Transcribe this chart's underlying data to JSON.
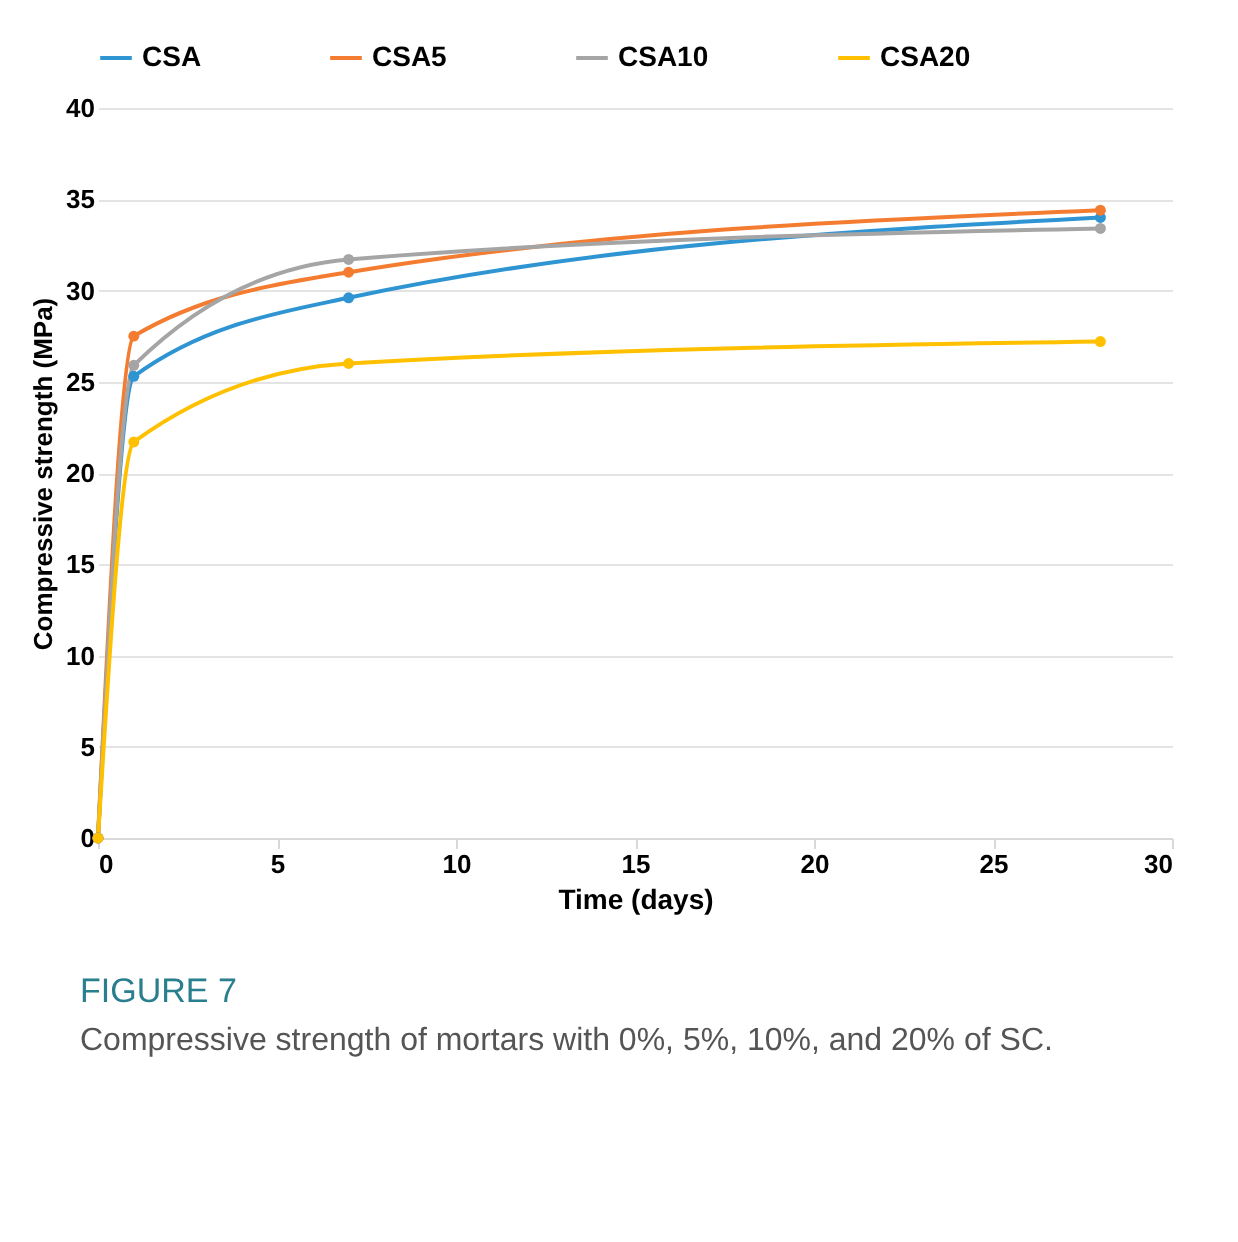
{
  "chart_data": {
    "type": "line",
    "xlabel": "Time (days)",
    "ylabel": "Compressive strength (MPa)",
    "x": [
      0,
      1,
      7,
      28
    ],
    "series": [
      {
        "name": "CSA",
        "color": "#2e94d2",
        "values": [
          0,
          25.3,
          29.6,
          34.0
        ]
      },
      {
        "name": "CSA5",
        "color": "#f47c30",
        "values": [
          0,
          27.5,
          31.0,
          34.4
        ]
      },
      {
        "name": "CSA10",
        "color": "#a5a5a5",
        "values": [
          0,
          25.9,
          31.7,
          33.4
        ]
      },
      {
        "name": "CSA20",
        "color": "#ffc000",
        "values": [
          0,
          21.7,
          26.0,
          27.2
        ]
      }
    ],
    "xlim": [
      0,
      30
    ],
    "xticks": [
      0,
      5,
      10,
      15,
      20,
      25,
      30
    ],
    "ylim": [
      0,
      40
    ],
    "yticks": [
      0,
      5,
      10,
      15,
      20,
      25,
      30,
      35,
      40
    ],
    "grid": "y",
    "legend": "top",
    "marker": "circle",
    "line_style": "solid",
    "annotations": [
      "FIGURE 7",
      "Compressive strength of mortars with 0%, 5%, 10%, and 20% of SC."
    ]
  }
}
